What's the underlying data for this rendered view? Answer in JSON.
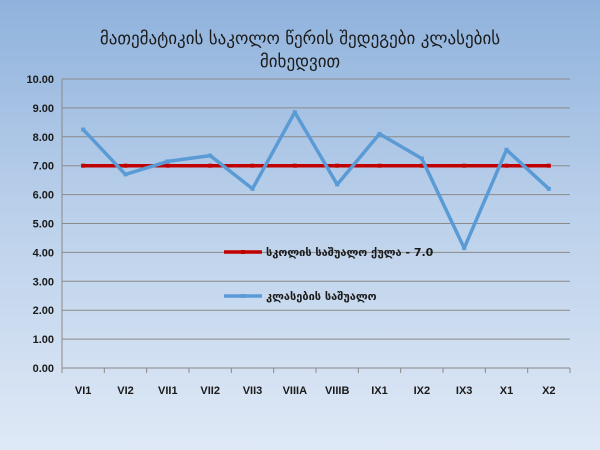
{
  "chart_data": {
    "type": "line",
    "title_line1": "მათემატიკის საკოლო წერის შედეგები კლასების",
    "title_line2": "მიხედვით",
    "categories": [
      "VI1",
      "VI2",
      "VII1",
      "VII2",
      "VII3",
      "VIIIA",
      "VIIIB",
      "IX1",
      "IX2",
      "IX3",
      "X1",
      "X2"
    ],
    "ylim": [
      0,
      10
    ],
    "yticks": [
      "0.00",
      "1.00",
      "2.00",
      "3.00",
      "4.00",
      "5.00",
      "6.00",
      "7.00",
      "8.00",
      "9.00",
      "10.00"
    ],
    "grid": true,
    "legend_placement": "center",
    "series": [
      {
        "name": "სკოლის საშუალო ქულა - 7.0",
        "color": "#c00000",
        "values": [
          7.0,
          7.0,
          7.0,
          7.0,
          7.0,
          7.0,
          7.0,
          7.0,
          7.0,
          7.0,
          7.0,
          7.0
        ]
      },
      {
        "name": "კლასების საშუალო",
        "color": "#5b9bd5",
        "values": [
          8.25,
          6.7,
          7.15,
          7.35,
          6.2,
          8.85,
          6.35,
          8.1,
          7.25,
          4.15,
          7.55,
          6.2
        ]
      }
    ]
  }
}
